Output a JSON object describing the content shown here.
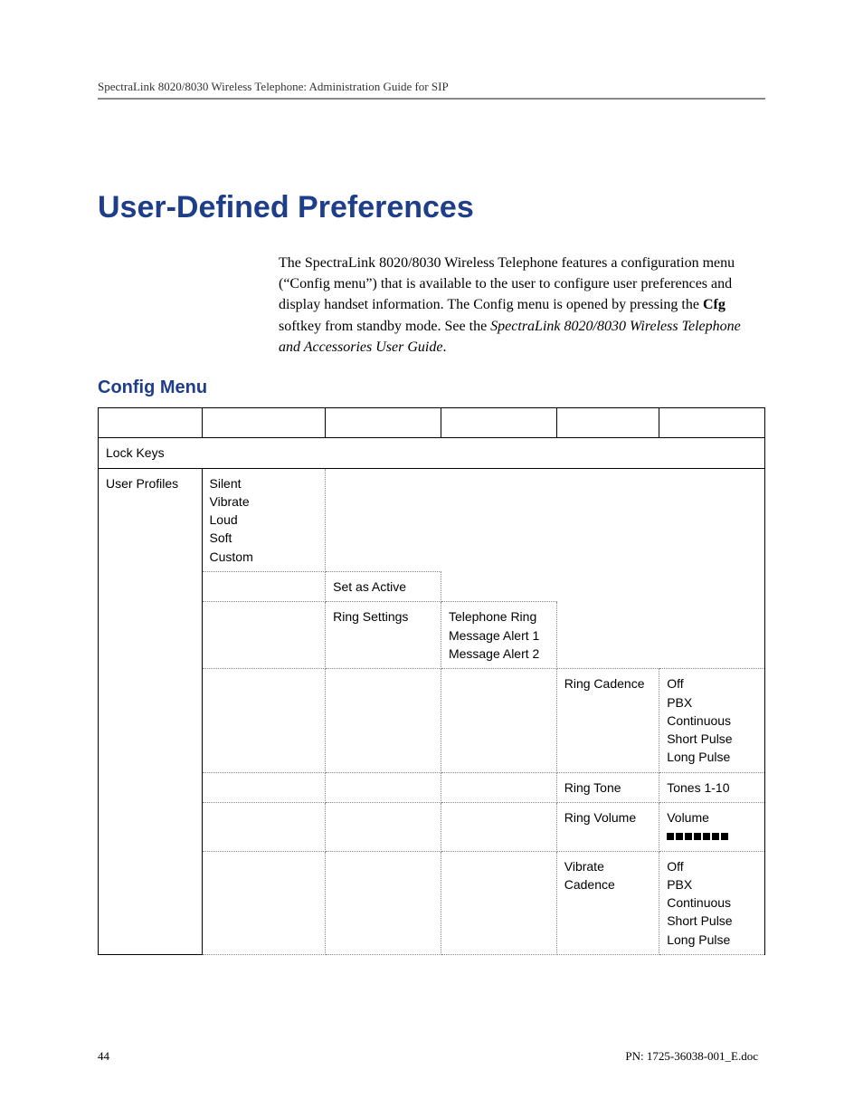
{
  "header": {
    "text": "SpectraLink 8020/8030 Wireless Telephone: Administration Guide for SIP"
  },
  "title": "User-Defined Preferences",
  "intro": {
    "p1a": "The SpectraLink 8020/8030 Wireless Telephone features a configuration menu (“Config menu”) that is available to the user to configure user preferences and display handset information. The Config menu is opened by pressing the ",
    "cfg": "Cfg",
    "p1b": " softkey from standby mode. See the ",
    "ref": "SpectraLink 8020/8030 Wireless Telephone and Accessories User Guide",
    "p1c": "."
  },
  "section_heading": "Config Menu",
  "table": {
    "lock_keys": "Lock Keys",
    "user_profiles": "User Profiles",
    "profiles": [
      "Silent",
      "Vibrate",
      "Loud",
      "Soft",
      "Custom"
    ],
    "set_as_active": "Set as Active",
    "ring_settings": "Ring Settings",
    "ring_options": [
      "Telephone Ring",
      "Message Alert 1",
      "Message Alert 2"
    ],
    "ring_cadence": "Ring Cadence",
    "cadence_options": [
      "Off",
      "PBX",
      "Continuous",
      "Short Pulse",
      "Long Pulse"
    ],
    "ring_tone": "Ring Tone",
    "ring_tone_options": "Tones 1-10",
    "ring_volume": "Ring Volume",
    "ring_volume_label": "Volume",
    "vibrate_cadence": "Vibrate Cadence",
    "vibrate_options": [
      "Off",
      "PBX",
      "Continuous",
      "Short Pulse",
      "Long Pulse"
    ]
  },
  "footer": {
    "page_number": "44",
    "doc_id": "PN: 1725-36038-001_E.doc"
  },
  "colors": {
    "heading": "#1e3e8a",
    "rule": "#888888",
    "text": "#000000"
  }
}
